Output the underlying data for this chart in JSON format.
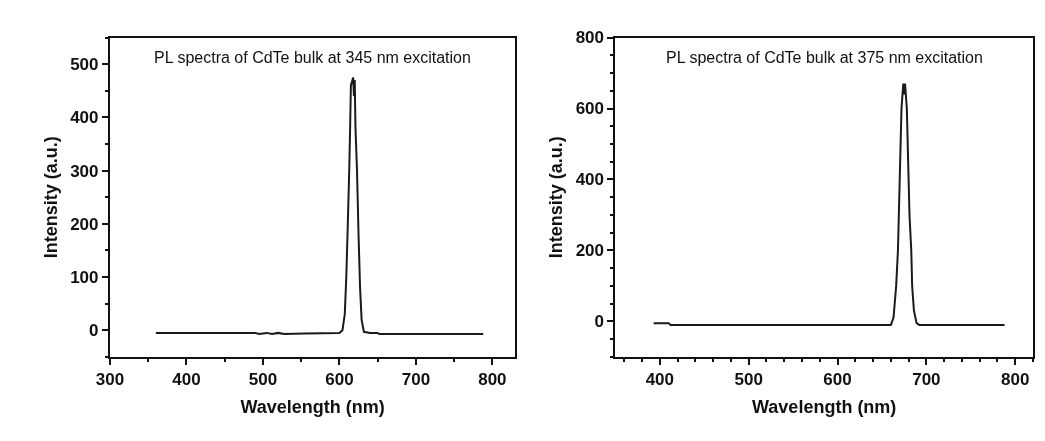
{
  "chart_data": [
    {
      "type": "line",
      "xlabel": "Wavelength (nm)",
      "ylabel": "Intensity (a.u.)",
      "annotations": [
        "PL spectra of CdTe bulk at 345 nm excitation"
      ],
      "xlim": [
        300,
        830
      ],
      "xticks": [
        300,
        400,
        500,
        600,
        700,
        800
      ],
      "ylim": [
        -50,
        550
      ],
      "yticks": [
        0,
        100,
        200,
        300,
        400,
        500
      ],
      "series": [
        {
          "color": "#1a1a1a",
          "x": [
            360,
            490,
            495,
            505,
            512,
            520,
            528,
            555,
            600,
            604,
            607,
            609,
            611,
            613,
            614,
            615,
            617,
            618,
            619,
            620,
            621,
            623,
            625,
            627,
            629,
            632,
            640,
            650,
            652,
            788
          ],
          "values": [
            -5,
            -5,
            -7,
            -5,
            -7,
            -5,
            -7,
            -6,
            -5,
            0,
            30,
            100,
            200,
            310,
            380,
            460,
            470,
            475,
            440,
            470,
            380,
            300,
            180,
            80,
            20,
            -3,
            -5,
            -5,
            -7,
            -7
          ]
        }
      ]
    },
    {
      "type": "line",
      "xlabel": "Wavelength (nm)",
      "ylabel": "Intensity (a.u.)",
      "annotations": [
        "PL spectra of CdTe bulk at 375 nm excitation"
      ],
      "xlim": [
        350,
        820
      ],
      "xticks": [
        400,
        500,
        600,
        700,
        800
      ],
      "ylim": [
        -100,
        800
      ],
      "yticks": [
        0,
        200,
        400,
        600,
        800
      ],
      "series": [
        {
          "color": "#1a1a1a",
          "x": [
            393,
            410,
            412,
            660,
            663,
            666,
            668,
            669,
            670,
            671,
            672,
            674,
            675,
            676,
            678,
            679,
            680,
            681,
            683,
            684,
            686,
            689,
            692,
            788
          ],
          "values": [
            -5,
            -5,
            -10,
            -10,
            10,
            100,
            200,
            300,
            400,
            500,
            600,
            670,
            640,
            670,
            600,
            500,
            400,
            300,
            200,
            100,
            30,
            -5,
            -10,
            -10
          ]
        }
      ]
    }
  ]
}
